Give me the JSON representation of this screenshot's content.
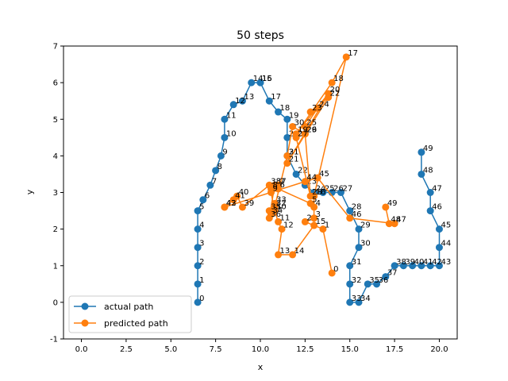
{
  "chart_data": {
    "type": "line",
    "title": "50 steps",
    "xlabel": "x",
    "ylabel": "y",
    "xlim": [
      -1.0,
      21.0
    ],
    "ylim": [
      -1,
      7
    ],
    "xticks": [
      "0.0",
      "2.5",
      "5.0",
      "7.5",
      "10.0",
      "12.5",
      "15.0",
      "17.5",
      "20.0"
    ],
    "yticks": [
      "-1",
      "0",
      "1",
      "2",
      "3",
      "4",
      "5",
      "6",
      "7"
    ],
    "grid": false,
    "legend_position": "lower-left",
    "series": [
      {
        "name": "actual path",
        "color": "#1f77b4",
        "labels": [
          "0",
          "1",
          "2",
          "3",
          "4",
          "5",
          "6",
          "7",
          "8",
          "9",
          "10",
          "11",
          "12",
          "13",
          "14",
          "15",
          "16",
          "17",
          "18",
          "19",
          "20",
          "21",
          "22",
          "23",
          "24",
          "25",
          "26",
          "27",
          "28",
          "29",
          "30",
          "31",
          "32",
          "33",
          "34",
          "35",
          "36",
          "37",
          "38",
          "39",
          "40",
          "41",
          "42",
          "43",
          "44",
          "45",
          "46",
          "47",
          "48",
          "49"
        ],
        "x": [
          6.5,
          6.5,
          6.5,
          6.5,
          6.5,
          6.5,
          6.8,
          7.2,
          7.5,
          7.8,
          8.0,
          8.0,
          8.5,
          9.0,
          9.5,
          10.0,
          10.0,
          10.5,
          11.0,
          11.5,
          11.5,
          11.5,
          12.0,
          12.5,
          13.0,
          13.5,
          14.0,
          14.5,
          15.0,
          15.5,
          15.5,
          15.0,
          15.0,
          15.0,
          15.5,
          16.0,
          16.5,
          17.0,
          17.5,
          18.0,
          18.5,
          19.0,
          19.5,
          20.0,
          20.0,
          20.0,
          19.5,
          19.5,
          19.0,
          19.0
        ],
        "y": [
          0.0,
          0.5,
          1.0,
          1.5,
          2.0,
          2.5,
          2.8,
          3.2,
          3.6,
          4.0,
          4.5,
          5.0,
          5.4,
          5.5,
          6.0,
          6.0,
          6.0,
          5.5,
          5.2,
          5.0,
          4.5,
          4.0,
          3.5,
          3.2,
          3.0,
          3.0,
          3.0,
          3.0,
          2.5,
          2.0,
          1.5,
          1.0,
          0.5,
          0.0,
          0.0,
          0.5,
          0.5,
          0.7,
          1.0,
          1.0,
          1.0,
          1.0,
          1.0,
          1.0,
          1.5,
          2.0,
          2.5,
          3.0,
          3.5,
          4.1
        ]
      },
      {
        "name": "predicted path",
        "color": "#ff7f0e",
        "labels": [
          "0",
          "1",
          "2",
          "3",
          "4",
          "5",
          "6",
          "7",
          "8",
          "9",
          "10",
          "11",
          "12",
          "13",
          "14",
          "15",
          "16",
          "17",
          "18",
          "19",
          "20",
          "21",
          "22",
          "23",
          "24",
          "25",
          "26",
          "27",
          "28",
          "29",
          "30",
          "31",
          "32",
          "33",
          "34",
          "35",
          "36",
          "37",
          "38",
          "39",
          "40",
          "41",
          "42",
          "43",
          "44",
          "45",
          "46",
          "47",
          "48",
          "49"
        ],
        "x": [
          14.0,
          13.5,
          12.5,
          13.0,
          13.0,
          12.8,
          11.0,
          11.0,
          10.6,
          10.6,
          10.8,
          11.0,
          11.2,
          11.0,
          11.8,
          13.0,
          13.0,
          14.8,
          14.0,
          12.0,
          13.8,
          11.5,
          13.8,
          12.8,
          13.2,
          12.5,
          12.5,
          12.0,
          12.8,
          12.5,
          11.8,
          11.5,
          10.8,
          10.8,
          10.6,
          10.5,
          10.5,
          10.8,
          10.5,
          9.0,
          8.7,
          8.5,
          8.0,
          8.0,
          12.5,
          13.2,
          15.0,
          17.5,
          17.2,
          17.0
        ],
        "y": [
          0.8,
          2.0,
          2.2,
          2.3,
          2.6,
          2.7,
          3.1,
          3.2,
          3.1,
          3.0,
          2.5,
          2.2,
          2.0,
          1.3,
          1.3,
          2.1,
          2.9,
          6.7,
          6.0,
          4.6,
          5.7,
          3.8,
          5.6,
          5.2,
          5.3,
          4.8,
          4.6,
          4.5,
          2.9,
          4.6,
          4.8,
          4.0,
          2.6,
          2.7,
          2.4,
          2.5,
          2.3,
          3.2,
          3.2,
          2.6,
          2.9,
          2.8,
          2.6,
          2.6,
          3.3,
          3.4,
          2.3,
          2.15,
          2.15,
          2.6
        ]
      }
    ]
  }
}
